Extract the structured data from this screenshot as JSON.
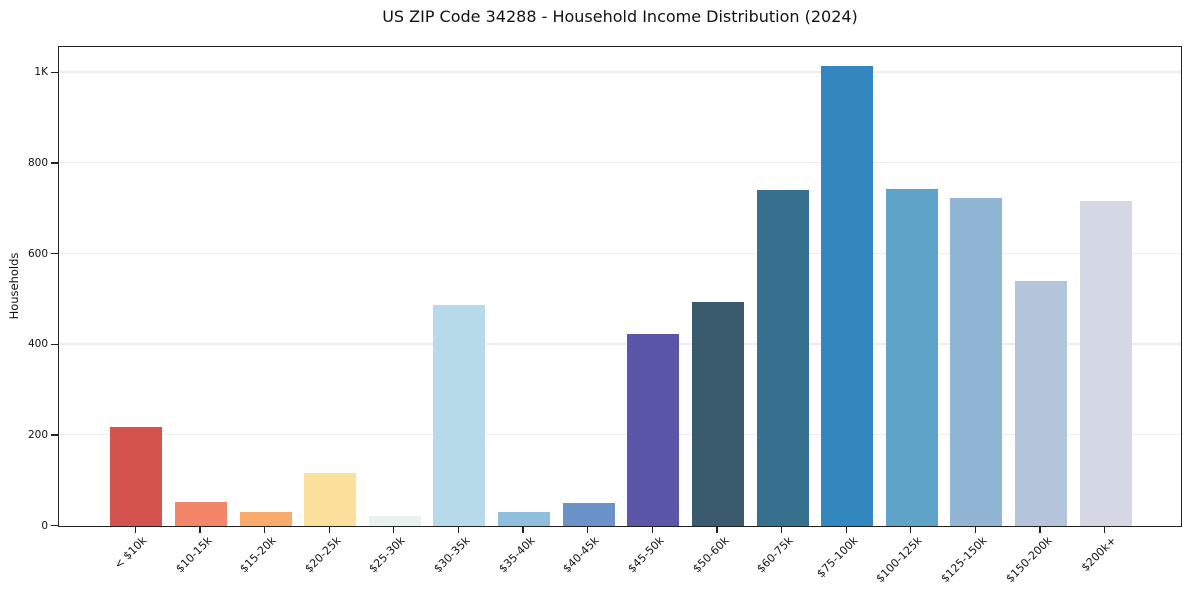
{
  "chart_data": {
    "type": "bar",
    "title": "US ZIP Code 34288 - Household Income Distribution (2024)",
    "xlabel": "",
    "ylabel": "Households",
    "categories": [
      "< $10k",
      "$10-15k",
      "$15-20k",
      "$20-25k",
      "$25-30k",
      "$30-35k",
      "$35-40k",
      "$40-45k",
      "$45-50k",
      "$50-60k",
      "$60-75k",
      "$75-100k",
      "$100-125k",
      "$125-150k",
      "$150-200k",
      "$200k+"
    ],
    "values": [
      219,
      53,
      31,
      116,
      22,
      488,
      31,
      50,
      423,
      494,
      741,
      1015,
      744,
      723,
      540,
      717
    ],
    "bar_colors": [
      "#d4534c",
      "#f1866a",
      "#f8ab6a",
      "#fce19d",
      "#e8f2ef",
      "#b6daea",
      "#90bfdd",
      "#6b93c8",
      "#5b56a7",
      "#3a5a6d",
      "#35708e",
      "#3287bf",
      "#60a3c8",
      "#91b6d5",
      "#b4c4db",
      "#d4d8e5"
    ],
    "ylim": [
      0,
      1055
    ],
    "yticks": [
      {
        "value": 0,
        "label": "0"
      },
      {
        "value": 200,
        "label": "200"
      },
      {
        "value": 400,
        "label": "400"
      },
      {
        "value": 600,
        "label": "600"
      },
      {
        "value": 800,
        "label": "800"
      },
      {
        "value": 1000,
        "label": "1K"
      }
    ],
    "gridline_values": [
      200,
      400,
      600,
      800,
      1000
    ],
    "grid": true,
    "legend_position": "none"
  },
  "colors": {
    "background": "#ffffff",
    "gridline": "#ebebf1",
    "spine": "#222222",
    "text": "#131313"
  }
}
